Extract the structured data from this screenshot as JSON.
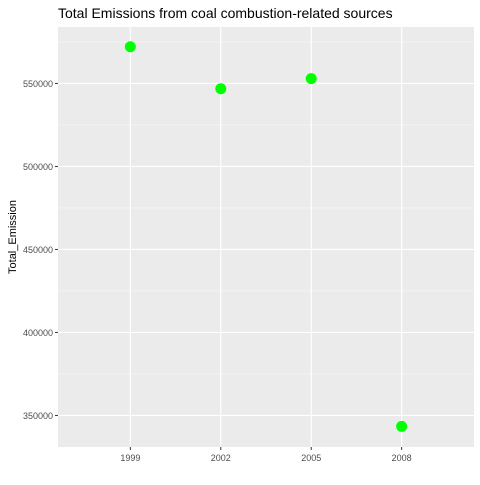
{
  "chart_data": {
    "type": "scatter",
    "title": "Total Emissions from coal combustion-related sources",
    "xlabel": "",
    "ylabel": "Total_Emission",
    "categories": [
      "1999",
      "2002",
      "2005",
      "2008"
    ],
    "series": [
      {
        "values": [
          572126,
          546789,
          552881,
          343432
        ]
      }
    ],
    "y_ticks": [
      350000,
      400000,
      450000,
      500000,
      550000
    ],
    "ylim": [
      331000,
      584000
    ],
    "grid": true,
    "legend": "none",
    "colors": {
      "panel_bg": "#EBEBEB",
      "grid_major": "#FFFFFF",
      "point": "#00FF00",
      "tick_text": "#4D4D4D",
      "title_text": "#000000"
    }
  }
}
